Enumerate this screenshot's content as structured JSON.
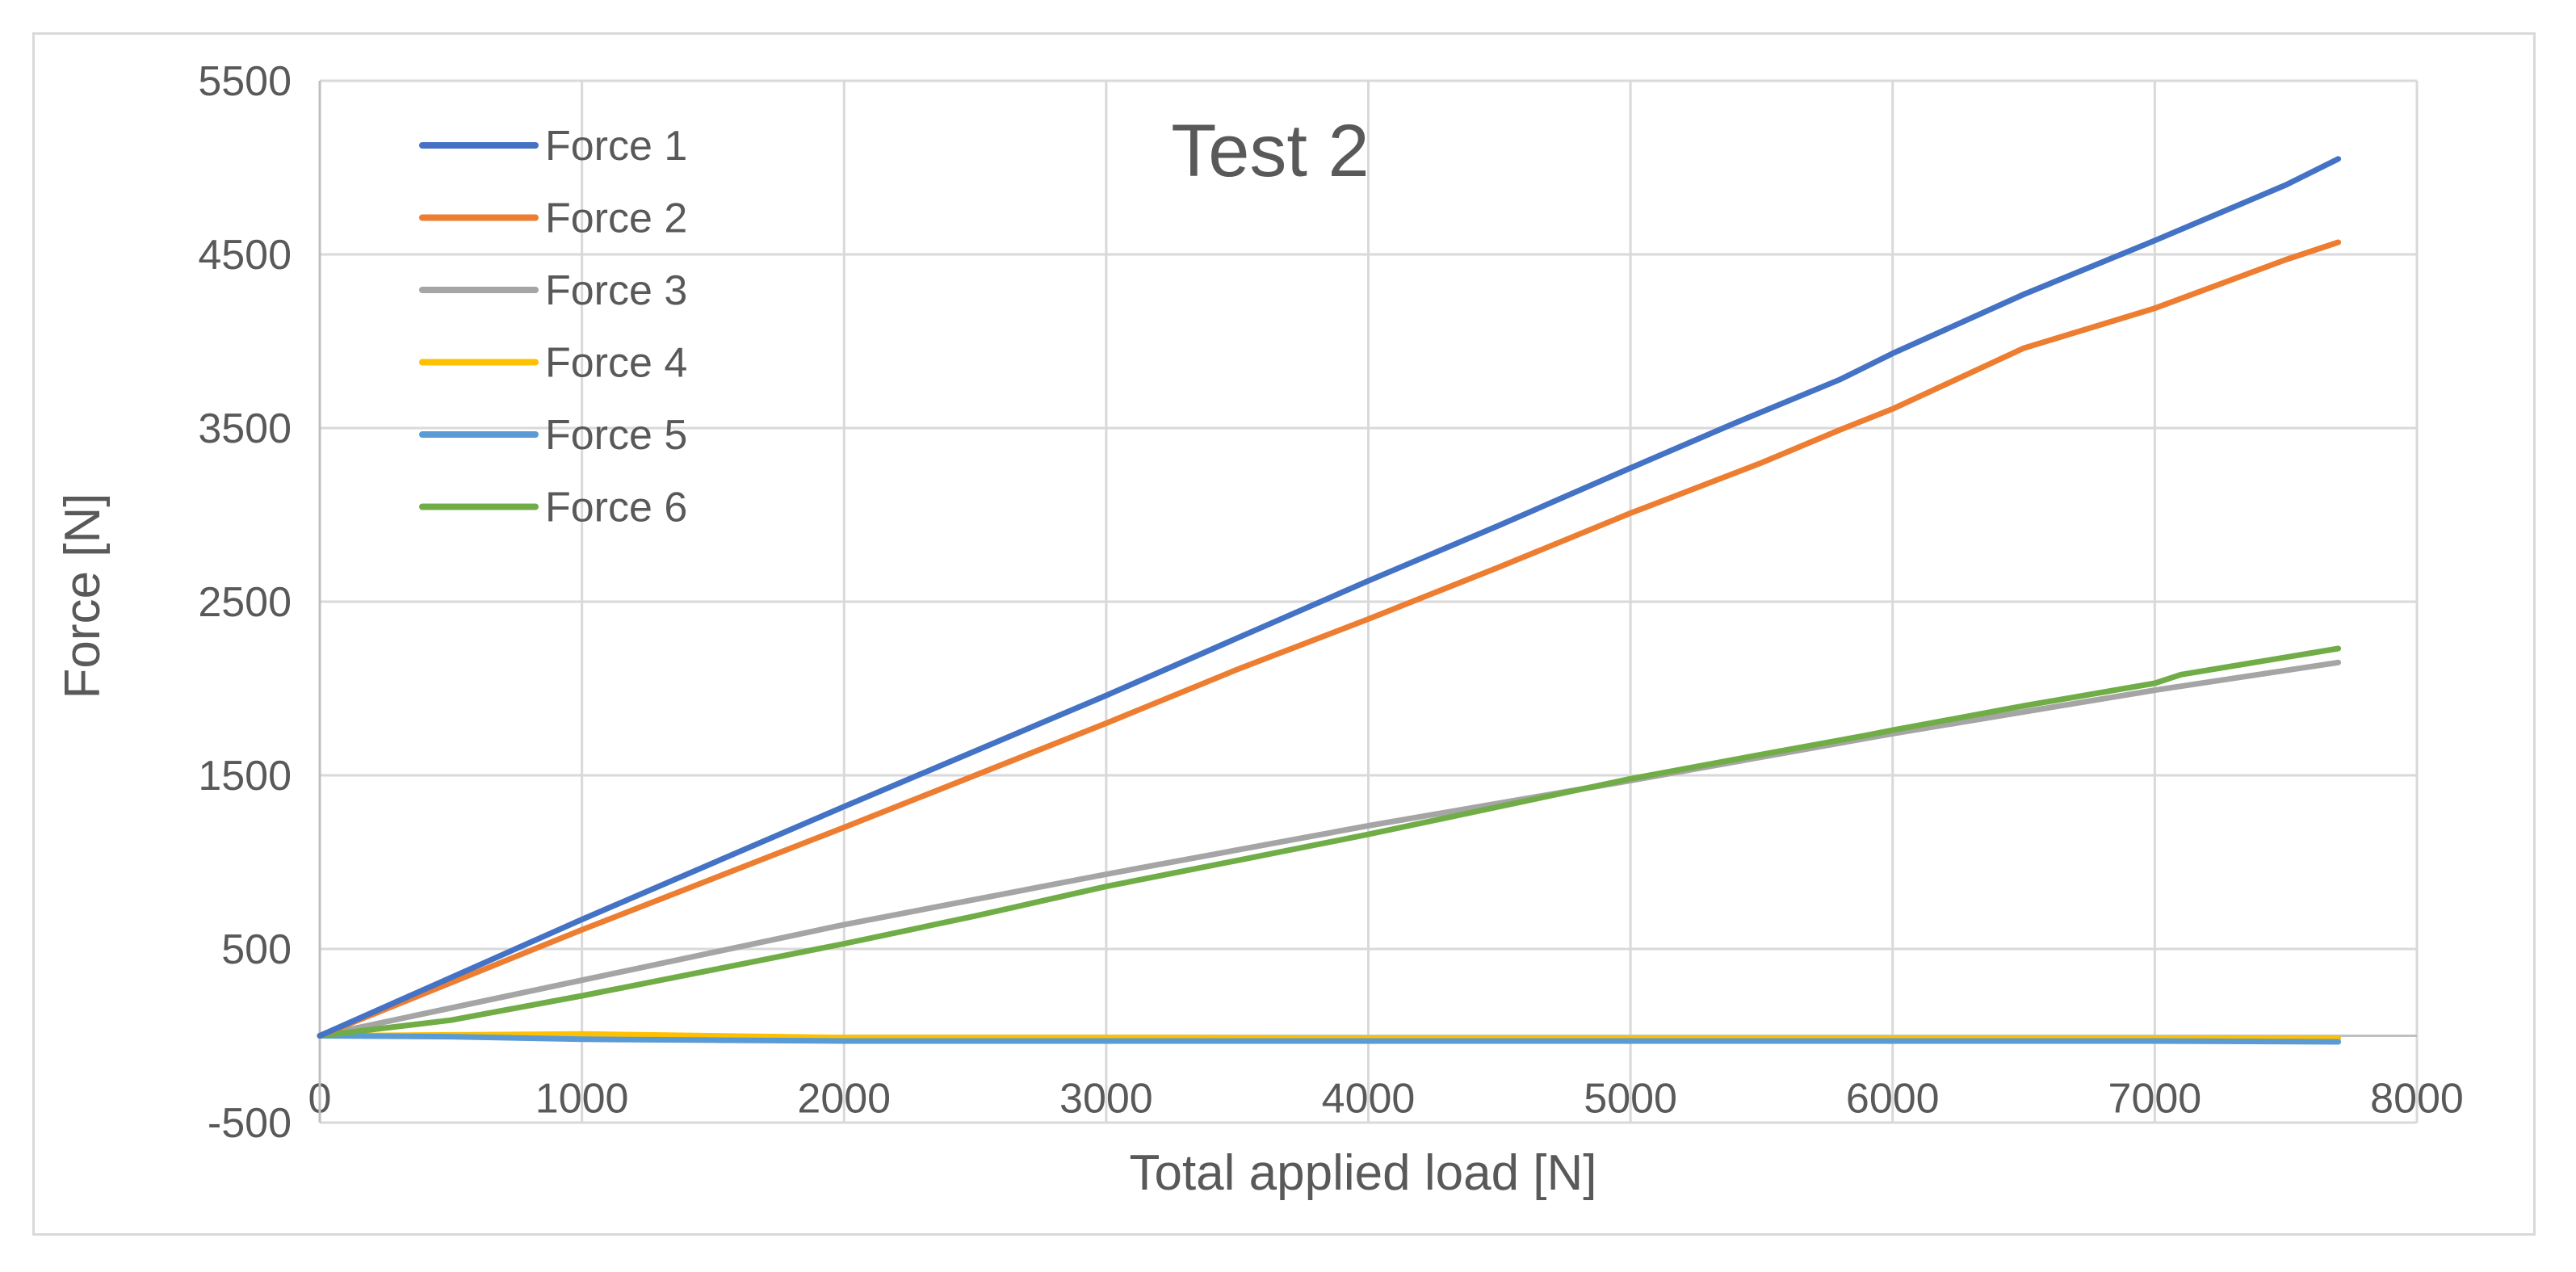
{
  "chart_data": {
    "type": "line",
    "title": "Test 2",
    "xlabel": "Total applied load [N]",
    "ylabel": "Force [N]",
    "xlim": [
      0,
      8000
    ],
    "ylim": [
      -500,
      5500
    ],
    "xticks": [
      0,
      1000,
      2000,
      3000,
      4000,
      5000,
      6000,
      7000,
      8000
    ],
    "yticks": [
      -500,
      500,
      1500,
      2500,
      3500,
      4500,
      5500
    ],
    "grid": true,
    "legend_position": "top-left",
    "series": [
      {
        "name": "Force 1",
        "color": "#4472C4",
        "x": [
          0,
          1000,
          2000,
          3000,
          3500,
          4000,
          4500,
          5000,
          5400,
          5800,
          6000,
          6500,
          7000,
          7500,
          7700
        ],
        "y": [
          0,
          670,
          1320,
          1960,
          2290,
          2620,
          2940,
          3270,
          3530,
          3780,
          3930,
          4270,
          4580,
          4900,
          5050
        ]
      },
      {
        "name": "Force 2",
        "color": "#ED7D31",
        "x": [
          0,
          1000,
          2000,
          3000,
          3500,
          4000,
          4500,
          5000,
          5500,
          5800,
          6000,
          6500,
          7000,
          7500,
          7700
        ],
        "y": [
          0,
          610,
          1200,
          1800,
          2110,
          2400,
          2700,
          3010,
          3300,
          3490,
          3610,
          3960,
          4190,
          4470,
          4570
        ]
      },
      {
        "name": "Force 3",
        "color": "#A5A5A5",
        "x": [
          0,
          1000,
          2000,
          3000,
          4000,
          5000,
          6000,
          7000,
          7700
        ],
        "y": [
          0,
          320,
          640,
          930,
          1210,
          1470,
          1740,
          1990,
          2150
        ]
      },
      {
        "name": "Force 4",
        "color": "#FFC000",
        "x": [
          0,
          1000,
          2000,
          3000,
          4000,
          5000,
          6000,
          7000,
          7700
        ],
        "y": [
          0,
          10,
          -10,
          -10,
          -15,
          -15,
          -15,
          -15,
          -15
        ]
      },
      {
        "name": "Force 5",
        "color": "#5B9BD5",
        "x": [
          0,
          500,
          1000,
          1500,
          2000,
          3000,
          4000,
          5000,
          6000,
          7000,
          7700
        ],
        "y": [
          0,
          -5,
          -20,
          -25,
          -30,
          -30,
          -30,
          -30,
          -30,
          -30,
          -35
        ]
      },
      {
        "name": "Force 6",
        "color": "#70AD47",
        "x": [
          0,
          500,
          1000,
          1500,
          2000,
          2500,
          3000,
          3500,
          4000,
          4500,
          5000,
          5500,
          5900,
          6000,
          6500,
          7000,
          7100,
          7500,
          7700
        ],
        "y": [
          0,
          90,
          230,
          380,
          530,
          690,
          860,
          1010,
          1160,
          1320,
          1480,
          1620,
          1730,
          1760,
          1900,
          2030,
          2080,
          2180,
          2230
        ]
      }
    ]
  }
}
